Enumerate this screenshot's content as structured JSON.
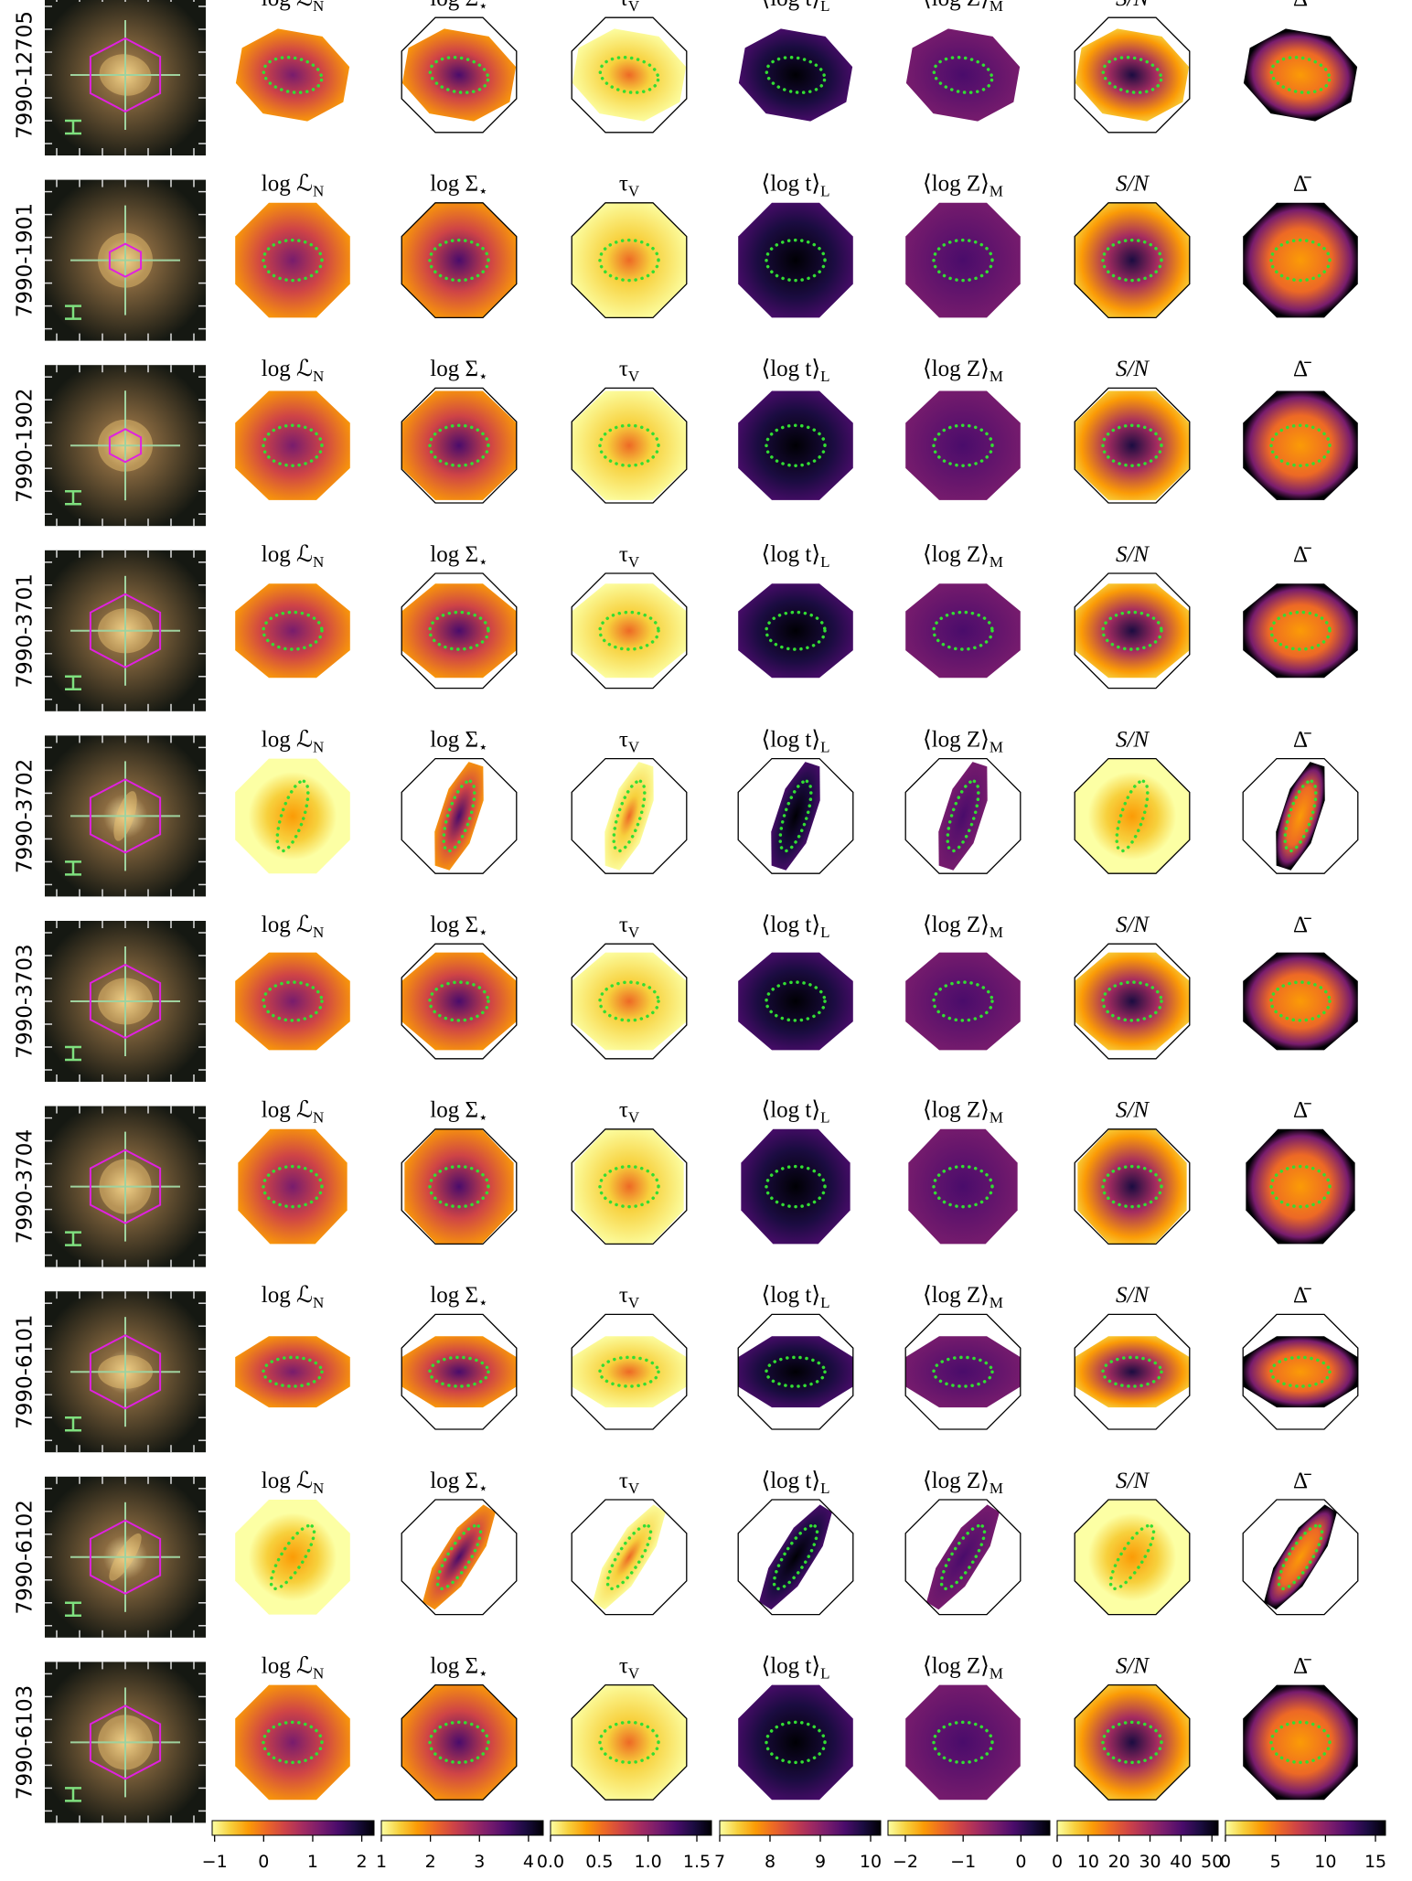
{
  "rows": [
    "7990-12705",
    "7990-1901",
    "7990-1902",
    "7990-3701",
    "7990-3702",
    "7990-3703",
    "7990-3704",
    "7990-6101",
    "7990-6102",
    "7990-6103"
  ],
  "panel_titles": [
    {
      "text": "log ℒ",
      "sub": "N"
    },
    {
      "text": "log Σ",
      "sub": "⋆"
    },
    {
      "text": "τ",
      "sub": "V"
    },
    {
      "text": "⟨log t⟩",
      "sub": "L"
    },
    {
      "text": "⟨log Z⟩",
      "sub": "M"
    },
    {
      "text": "S/N"
    },
    {
      "text": "Δ̄"
    }
  ],
  "colorbars": [
    {
      "lim": [
        -1.05,
        2.25
      ],
      "ticks": [
        {
          "value": -1,
          "label": "−1"
        },
        0,
        1,
        2
      ]
    },
    {
      "lim": [
        1,
        4.3
      ],
      "ticks": [
        1,
        2,
        3,
        4
      ]
    },
    {
      "lim": [
        0,
        1.65
      ],
      "ticks": [
        {
          "value": 0,
          "label": "0.0"
        },
        {
          "value": 0.5,
          "label": "0.5"
        },
        {
          "value": 1,
          "label": "1.0"
        },
        {
          "value": 1.5,
          "label": "1.5"
        }
      ]
    },
    {
      "lim": [
        7,
        10.2
      ],
      "ticks": [
        7,
        8,
        9,
        10
      ]
    },
    {
      "lim": [
        -2.3,
        0.5
      ],
      "ticks": [
        {
          "value": -2,
          "label": "−2"
        },
        {
          "value": -1,
          "label": "−1"
        },
        0
      ]
    },
    {
      "lim": [
        0,
        52
      ],
      "ticks": [
        0,
        10,
        20,
        30,
        40,
        50
      ]
    },
    {
      "lim": [
        0,
        16
      ],
      "ticks": [
        0,
        5,
        10,
        15
      ]
    }
  ]
}
